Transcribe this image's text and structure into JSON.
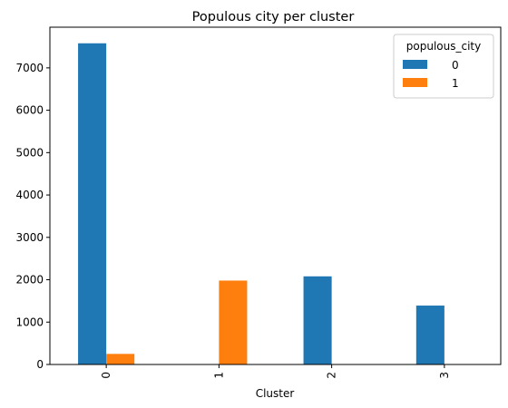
{
  "chart_data": {
    "type": "bar",
    "title": "Populous city per cluster",
    "xlabel": "Cluster",
    "ylabel": "",
    "categories": [
      "0",
      "1",
      "2",
      "3"
    ],
    "series": [
      {
        "name": "0",
        "color": "#1f77b4",
        "values": [
          7580,
          0,
          2080,
          1390
        ]
      },
      {
        "name": "1",
        "color": "#ff7f0e",
        "values": [
          250,
          1980,
          0,
          0
        ]
      }
    ],
    "ylim": [
      0,
      7960
    ],
    "yticks": [
      0,
      1000,
      2000,
      3000,
      4000,
      5000,
      6000,
      7000
    ],
    "xtick_rotation": 90,
    "legend": {
      "title": "populous_city",
      "placement": "top-right"
    },
    "grid": false
  }
}
